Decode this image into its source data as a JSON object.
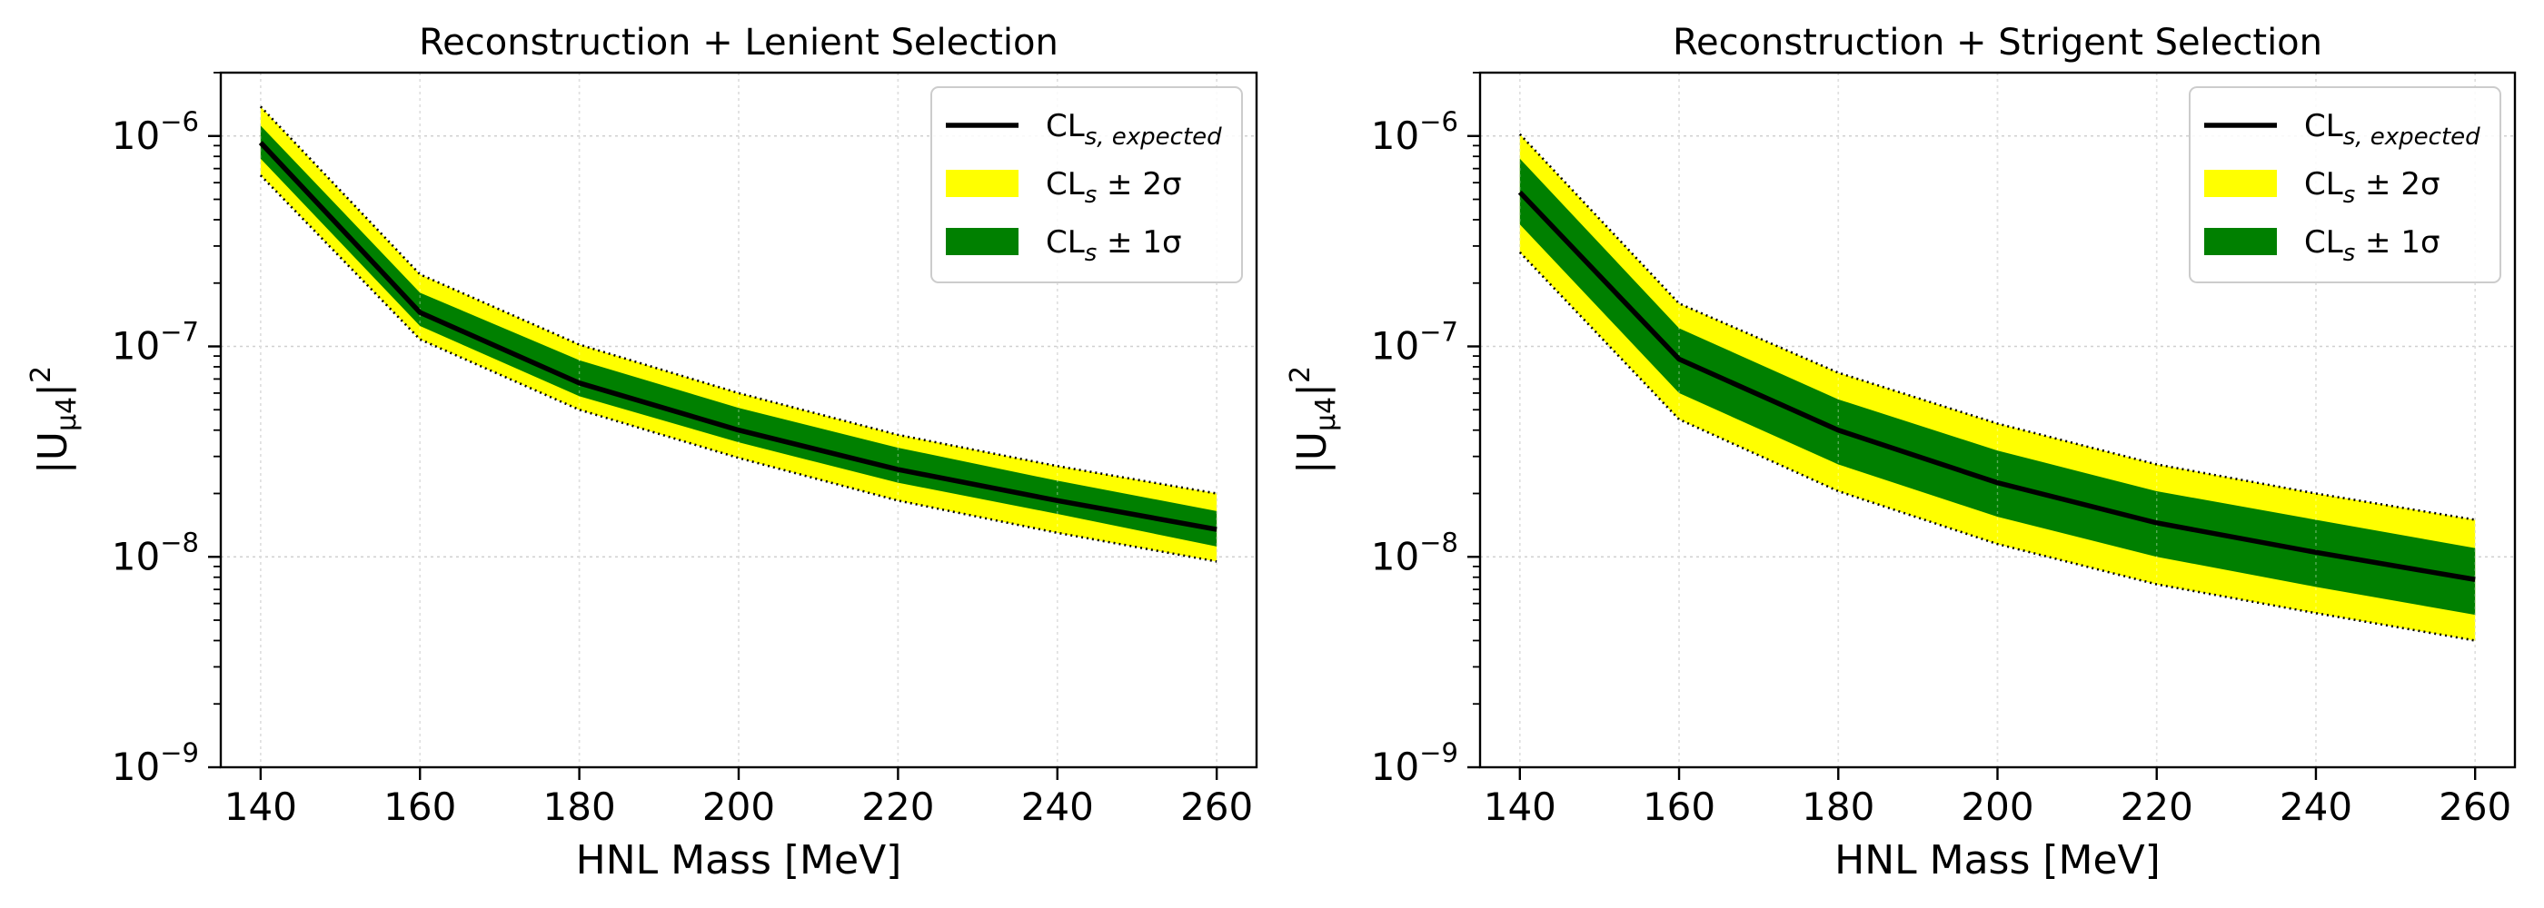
{
  "chart_data": [
    {
      "type": "line",
      "title": "Reconstruction + Lenient Selection",
      "xlabel": "HNL Mass [MeV]",
      "ylabel": "|U_μ4|²",
      "yscale": "log",
      "xlim": [
        135,
        265
      ],
      "ylim": [
        1e-09,
        2e-06
      ],
      "grid": true,
      "legend_position": "top-right",
      "x": [
        140,
        160,
        180,
        200,
        220,
        240,
        260
      ],
      "x_tick_labels": [
        "140",
        "160",
        "180",
        "200",
        "220",
        "240",
        "260"
      ],
      "y_ticks": [
        {
          "value": 1e-09,
          "base": "10",
          "exp": "−9"
        },
        {
          "value": 1e-08,
          "base": "10",
          "exp": "−8"
        },
        {
          "value": 1e-07,
          "base": "10",
          "exp": "−7"
        },
        {
          "value": 1e-06,
          "base": "10",
          "exp": "−6"
        }
      ],
      "expected": [
        9.3e-07,
        1.45e-07,
        6.7e-08,
        4e-08,
        2.6e-08,
        1.85e-08,
        1.35e-08
      ],
      "band_1sigma": {
        "low": [
          7.8e-07,
          1.25e-07,
          5.8e-08,
          3.5e-08,
          2.25e-08,
          1.6e-08,
          1.12e-08
        ],
        "high": [
          1.12e-06,
          1.8e-07,
          8.6e-08,
          5.1e-08,
          3.3e-08,
          2.3e-08,
          1.65e-08
        ]
      },
      "band_2sigma": {
        "low": [
          6.5e-07,
          1.08e-07,
          5e-08,
          2.95e-08,
          1.85e-08,
          1.3e-08,
          9.5e-09
        ],
        "high": [
          1.38e-06,
          2.2e-07,
          1.02e-07,
          6e-08,
          3.8e-08,
          2.7e-08,
          2e-08
        ]
      },
      "legend": [
        {
          "kind": "line",
          "base": "CL",
          "sub": "s, expected",
          "suffix": ""
        },
        {
          "kind": "yellow",
          "base": "CL",
          "sub": "s",
          "suffix": " ± 2σ"
        },
        {
          "kind": "green",
          "base": "CL",
          "sub": "s",
          "suffix": " ± 1σ"
        }
      ],
      "colors": {
        "line": "#000000",
        "one_sigma": "#008000",
        "two_sigma": "#ffff00"
      }
    },
    {
      "type": "line",
      "title": "Reconstruction + Strigent Selection",
      "xlabel": "HNL Mass [MeV]",
      "ylabel": "|U_μ4|²",
      "yscale": "log",
      "xlim": [
        135,
        265
      ],
      "ylim": [
        1e-09,
        2e-06
      ],
      "grid": true,
      "legend_position": "top-right",
      "x": [
        140,
        160,
        180,
        200,
        220,
        240,
        260
      ],
      "x_tick_labels": [
        "140",
        "160",
        "180",
        "200",
        "220",
        "240",
        "260"
      ],
      "y_ticks": [
        {
          "value": 1e-09,
          "base": "10",
          "exp": "−9"
        },
        {
          "value": 1e-08,
          "base": "10",
          "exp": "−8"
        },
        {
          "value": 1e-07,
          "base": "10",
          "exp": "−7"
        },
        {
          "value": 1e-06,
          "base": "10",
          "exp": "−6"
        }
      ],
      "expected": [
        5.4e-07,
        8.7e-08,
        4e-08,
        2.25e-08,
        1.45e-08,
        1.05e-08,
        7.8e-09
      ],
      "band_1sigma": {
        "low": [
          3.8e-07,
          6e-08,
          2.75e-08,
          1.55e-08,
          1e-08,
          7.2e-09,
          5.3e-09
        ],
        "high": [
          7.8e-07,
          1.22e-07,
          5.6e-08,
          3.2e-08,
          2.05e-08,
          1.5e-08,
          1.1e-08
        ]
      },
      "band_2sigma": {
        "low": [
          2.8e-07,
          4.5e-08,
          2.05e-08,
          1.15e-08,
          7.4e-09,
          5.4e-09,
          4e-09
        ],
        "high": [
          1.02e-06,
          1.6e-07,
          7.5e-08,
          4.3e-08,
          2.75e-08,
          2e-08,
          1.5e-08
        ]
      },
      "legend": [
        {
          "kind": "line",
          "base": "CL",
          "sub": "s, expected",
          "suffix": ""
        },
        {
          "kind": "yellow",
          "base": "CL",
          "sub": "s",
          "suffix": " ± 2σ"
        },
        {
          "kind": "green",
          "base": "CL",
          "sub": "s",
          "suffix": " ± 1σ"
        }
      ],
      "colors": {
        "line": "#000000",
        "one_sigma": "#008000",
        "two_sigma": "#ffff00"
      }
    }
  ]
}
